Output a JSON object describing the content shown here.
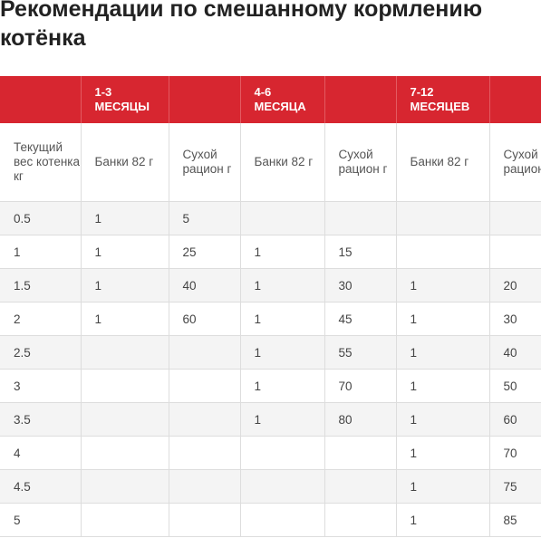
{
  "title": "Рекомендации по смешанному кормлению котёнка",
  "table": {
    "month_headers": [
      "",
      "1-3\nМЕСЯЦЫ",
      "",
      "4-6\nМЕСЯЦА",
      "",
      "7-12\nМЕСЯЦЕВ",
      ""
    ],
    "sub_headers": [
      "Текущий вес котенка кг",
      "Банки 82 г",
      "Сухой рацион г",
      "Банки 82 г",
      "Сухой рацион г",
      "Банки 82 г",
      "Сухой рацион г"
    ],
    "rows": [
      [
        "0.5",
        "1",
        "5",
        "",
        "",
        "",
        ""
      ],
      [
        "1",
        "1",
        "25",
        "1",
        "15",
        "",
        ""
      ],
      [
        "1.5",
        "1",
        "40",
        "1",
        "30",
        "1",
        "20"
      ],
      [
        "2",
        "1",
        "60",
        "1",
        "45",
        "1",
        "30"
      ],
      [
        "2.5",
        "",
        "",
        "1",
        "55",
        "1",
        "40"
      ],
      [
        "3",
        "",
        "",
        "1",
        "70",
        "1",
        "50"
      ],
      [
        "3.5",
        "",
        "",
        "1",
        "80",
        "1",
        "60"
      ],
      [
        "4",
        "",
        "",
        "",
        "",
        "1",
        "70"
      ],
      [
        "4.5",
        "",
        "",
        "",
        "",
        "1",
        "75"
      ],
      [
        "5",
        "",
        "",
        "",
        "",
        "1",
        "85"
      ]
    ]
  },
  "colors": {
    "header_red": "#d72630",
    "row_stripe": "#f4f4f4"
  }
}
